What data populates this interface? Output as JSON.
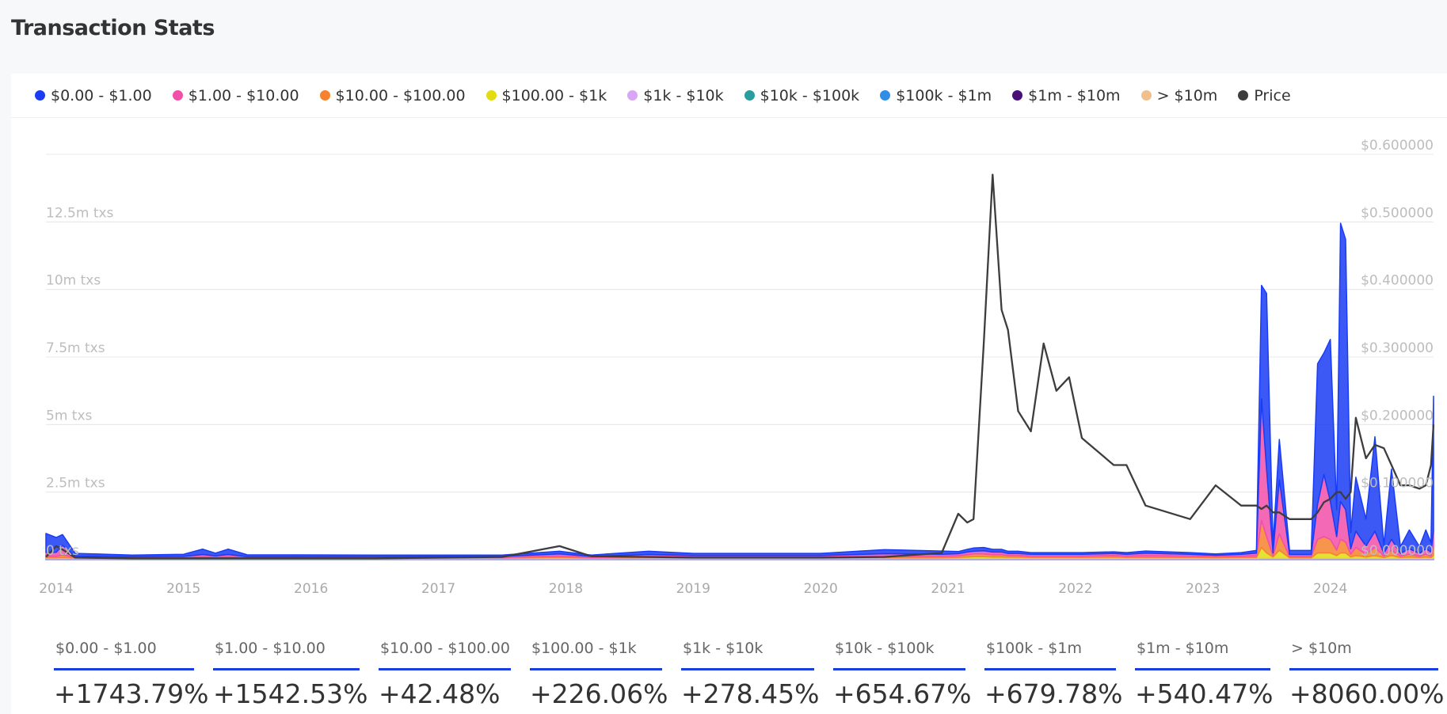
{
  "header": {
    "title": "Transaction Stats"
  },
  "chart_data": {
    "type": "area",
    "x": [
      2013.92,
      2014.0,
      2014.05,
      2014.15,
      2014.6,
      2015.0,
      2015.15,
      2015.25,
      2015.35,
      2015.5,
      2016.5,
      2017.5,
      2017.95,
      2018.2,
      2018.65,
      2019.0,
      2020.0,
      2020.5,
      2020.95,
      2021.08,
      2021.15,
      2021.2,
      2021.28,
      2021.35,
      2021.42,
      2021.47,
      2021.55,
      2021.65,
      2021.75,
      2021.85,
      2021.95,
      2022.05,
      2022.3,
      2022.4,
      2022.55,
      2022.9,
      2023.1,
      2023.3,
      2023.42,
      2023.46,
      2023.5,
      2023.55,
      2023.6,
      2023.68,
      2023.85,
      2023.9,
      2023.95,
      2024.0,
      2024.05,
      2024.08,
      2024.12,
      2024.16,
      2024.2,
      2024.28,
      2024.35,
      2024.42,
      2024.48,
      2024.55,
      2024.62,
      2024.7,
      2024.75,
      2024.79,
      2024.81
    ],
    "series": [
      {
        "name": "$0.00 - $1.00",
        "color": "#1a3cf5",
        "values": [
          0.7,
          0.55,
          0.4,
          0.1,
          0.06,
          0.08,
          0.2,
          0.1,
          0.2,
          0.07,
          0.06,
          0.05,
          0.1,
          0.05,
          0.12,
          0.08,
          0.08,
          0.15,
          0.12,
          0.08,
          0.1,
          0.12,
          0.12,
          0.1,
          0.1,
          0.08,
          0.08,
          0.06,
          0.06,
          0.06,
          0.06,
          0.06,
          0.06,
          0.06,
          0.08,
          0.06,
          0.05,
          0.06,
          0.1,
          4.2,
          6.5,
          0.3,
          1.5,
          0.15,
          0.15,
          5.2,
          4.5,
          6.0,
          1.0,
          10.3,
          10.0,
          0.6,
          2.0,
          1.0,
          3.5,
          0.3,
          2.6,
          0.25,
          0.7,
          0.25,
          0.7,
          0.35,
          5.0
        ]
      },
      {
        "name": "$1.00 - $10.00",
        "color": "#f24fa8",
        "values": [
          0.15,
          0.15,
          0.35,
          0.05,
          0.03,
          0.04,
          0.08,
          0.05,
          0.08,
          0.03,
          0.03,
          0.04,
          0.08,
          0.04,
          0.08,
          0.06,
          0.06,
          0.1,
          0.08,
          0.08,
          0.1,
          0.1,
          0.12,
          0.1,
          0.1,
          0.08,
          0.08,
          0.07,
          0.07,
          0.07,
          0.07,
          0.07,
          0.08,
          0.07,
          0.1,
          0.07,
          0.05,
          0.07,
          0.1,
          4.5,
          2.5,
          0.1,
          2.0,
          0.08,
          0.08,
          1.3,
          2.3,
          1.4,
          0.5,
          1.4,
          1.2,
          0.2,
          0.6,
          0.3,
          0.6,
          0.1,
          0.4,
          0.1,
          0.2,
          0.1,
          0.2,
          0.15,
          0.6
        ]
      },
      {
        "name": "$10.00 - $100.00",
        "color": "#f6822f",
        "values": [
          0.05,
          0.05,
          0.1,
          0.02,
          0.02,
          0.02,
          0.04,
          0.03,
          0.04,
          0.02,
          0.02,
          0.02,
          0.05,
          0.02,
          0.04,
          0.03,
          0.03,
          0.05,
          0.05,
          0.06,
          0.08,
          0.1,
          0.1,
          0.08,
          0.08,
          0.06,
          0.06,
          0.05,
          0.05,
          0.05,
          0.05,
          0.05,
          0.06,
          0.05,
          0.06,
          0.05,
          0.04,
          0.05,
          0.06,
          1.0,
          0.6,
          0.05,
          0.6,
          0.04,
          0.04,
          0.5,
          0.6,
          0.5,
          0.2,
          0.5,
          0.4,
          0.1,
          0.3,
          0.1,
          0.3,
          0.05,
          0.2,
          0.05,
          0.1,
          0.05,
          0.1,
          0.05,
          0.3
        ]
      },
      {
        "name": "$100.00 - $1k",
        "color": "#e2dc12",
        "values": [
          0.02,
          0.02,
          0.03,
          0.01,
          0.01,
          0.01,
          0.02,
          0.01,
          0.02,
          0.01,
          0.01,
          0.01,
          0.03,
          0.01,
          0.02,
          0.01,
          0.01,
          0.02,
          0.02,
          0.03,
          0.05,
          0.06,
          0.06,
          0.05,
          0.05,
          0.04,
          0.04,
          0.03,
          0.03,
          0.03,
          0.03,
          0.03,
          0.04,
          0.03,
          0.03,
          0.03,
          0.02,
          0.03,
          0.03,
          0.4,
          0.2,
          0.05,
          0.3,
          0.02,
          0.02,
          0.2,
          0.2,
          0.2,
          0.1,
          0.2,
          0.2,
          0.05,
          0.1,
          0.05,
          0.1,
          0.03,
          0.1,
          0.03,
          0.05,
          0.03,
          0.05,
          0.03,
          0.1
        ]
      },
      {
        "name": "$1k - $10k",
        "color": "#d9a6f5",
        "values": [
          0.02,
          0.02,
          0.02,
          0.02,
          0.02,
          0.02,
          0.02,
          0.02,
          0.02,
          0.02,
          0.02,
          0.02,
          0.02,
          0.02,
          0.02,
          0.02,
          0.02,
          0.02,
          0.02,
          0.02,
          0.02,
          0.02,
          0.02,
          0.02,
          0.02,
          0.02,
          0.02,
          0.02,
          0.02,
          0.02,
          0.02,
          0.02,
          0.02,
          0.02,
          0.02,
          0.02,
          0.02,
          0.02,
          0.02,
          0.02,
          0.02,
          0.02,
          0.02,
          0.02,
          0.02,
          0.02,
          0.02,
          0.02,
          0.02,
          0.02,
          0.02,
          0.02,
          0.02,
          0.02,
          0.02,
          0.02,
          0.02,
          0.02,
          0.02,
          0.02,
          0.02,
          0.02,
          0.02
        ]
      },
      {
        "name": "$10k - $100k",
        "color": "#2a9d9d",
        "values": [
          0.01,
          0.01,
          0.01,
          0.01,
          0.01,
          0.01,
          0.01,
          0.01,
          0.01,
          0.01,
          0.01,
          0.01,
          0.01,
          0.01,
          0.01,
          0.01,
          0.01,
          0.01,
          0.01,
          0.01,
          0.01,
          0.01,
          0.01,
          0.01,
          0.01,
          0.01,
          0.01,
          0.01,
          0.01,
          0.01,
          0.01,
          0.01,
          0.01,
          0.01,
          0.01,
          0.01,
          0.01,
          0.01,
          0.01,
          0.01,
          0.01,
          0.01,
          0.01,
          0.01,
          0.01,
          0.01,
          0.01,
          0.01,
          0.01,
          0.01,
          0.01,
          0.01,
          0.01,
          0.01,
          0.01,
          0.01,
          0.01,
          0.01,
          0.01,
          0.01,
          0.01,
          0.01,
          0.01
        ]
      },
      {
        "name": "$100k - $1m",
        "color": "#2f8fe8",
        "values": [
          0.01,
          0.01,
          0.01,
          0.01,
          0.01,
          0.01,
          0.01,
          0.01,
          0.01,
          0.01,
          0.01,
          0.01,
          0.01,
          0.01,
          0.01,
          0.01,
          0.01,
          0.01,
          0.01,
          0.01,
          0.01,
          0.01,
          0.01,
          0.01,
          0.01,
          0.01,
          0.01,
          0.01,
          0.01,
          0.01,
          0.01,
          0.01,
          0.01,
          0.01,
          0.01,
          0.01,
          0.01,
          0.01,
          0.01,
          0.01,
          0.01,
          0.01,
          0.01,
          0.01,
          0.01,
          0.01,
          0.01,
          0.01,
          0.01,
          0.01,
          0.01,
          0.01,
          0.01,
          0.01,
          0.01,
          0.01,
          0.01,
          0.01,
          0.01,
          0.01,
          0.01,
          0.01,
          0.01
        ]
      },
      {
        "name": "$1m - $10m",
        "color": "#4a0e78",
        "values": [
          0.005,
          0.005,
          0.005,
          0.005,
          0.005,
          0.005,
          0.005,
          0.005,
          0.005,
          0.005,
          0.005,
          0.005,
          0.005,
          0.005,
          0.005,
          0.005,
          0.005,
          0.005,
          0.005,
          0.005,
          0.005,
          0.005,
          0.005,
          0.005,
          0.005,
          0.005,
          0.005,
          0.005,
          0.005,
          0.005,
          0.005,
          0.005,
          0.005,
          0.005,
          0.005,
          0.005,
          0.005,
          0.005,
          0.005,
          0.005,
          0.005,
          0.005,
          0.005,
          0.005,
          0.005,
          0.005,
          0.005,
          0.005,
          0.005,
          0.005,
          0.005,
          0.005,
          0.005,
          0.005,
          0.005,
          0.005,
          0.005,
          0.005,
          0.005,
          0.005,
          0.005,
          0.005,
          0.005
        ]
      },
      {
        "name": "> $10m",
        "color": "#f0bf8e",
        "values": [
          0.005,
          0.005,
          0.005,
          0.005,
          0.005,
          0.005,
          0.005,
          0.005,
          0.005,
          0.005,
          0.005,
          0.005,
          0.005,
          0.005,
          0.005,
          0.005,
          0.005,
          0.005,
          0.005,
          0.005,
          0.005,
          0.005,
          0.005,
          0.005,
          0.005,
          0.005,
          0.005,
          0.005,
          0.005,
          0.005,
          0.005,
          0.005,
          0.005,
          0.005,
          0.005,
          0.005,
          0.005,
          0.005,
          0.005,
          0.005,
          0.005,
          0.005,
          0.005,
          0.005,
          0.005,
          0.005,
          0.005,
          0.005,
          0.005,
          0.005,
          0.005,
          0.005,
          0.005,
          0.005,
          0.005,
          0.005,
          0.005,
          0.005,
          0.005,
          0.005,
          0.005,
          0.005,
          0.005
        ]
      },
      {
        "name": "Price",
        "color": "#3d3d3d",
        "type": "line",
        "axis": "y2",
        "values": [
          0.004,
          0.02,
          0.015,
          0.003,
          0.002,
          0.002,
          0.002,
          0.002,
          0.002,
          0.002,
          0.002,
          0.004,
          0.02,
          0.005,
          0.004,
          0.003,
          0.003,
          0.004,
          0.01,
          0.068,
          0.055,
          0.06,
          0.32,
          0.57,
          0.37,
          0.34,
          0.22,
          0.19,
          0.32,
          0.25,
          0.27,
          0.18,
          0.14,
          0.14,
          0.08,
          0.06,
          0.11,
          0.08,
          0.08,
          0.075,
          0.08,
          0.07,
          0.07,
          0.06,
          0.06,
          0.07,
          0.085,
          0.09,
          0.1,
          0.1,
          0.09,
          0.1,
          0.21,
          0.15,
          0.17,
          0.165,
          0.14,
          0.11,
          0.11,
          0.105,
          0.11,
          0.14,
          0.2
        ]
      }
    ],
    "xlim": [
      2013.92,
      2024.81
    ],
    "xticks": [
      2014,
      2015,
      2016,
      2017,
      2018,
      2019,
      2020,
      2021,
      2022,
      2023,
      2024
    ],
    "ylim": [
      0,
      15
    ],
    "yticks": [
      {
        "value": 0,
        "label": "0 txs"
      },
      {
        "value": 2.5,
        "label": "2.5m txs"
      },
      {
        "value": 5,
        "label": "5m txs"
      },
      {
        "value": 7.5,
        "label": "7.5m txs"
      },
      {
        "value": 10,
        "label": "10m txs"
      },
      {
        "value": 12.5,
        "label": "12.5m txs"
      }
    ],
    "y2lim": [
      0,
      0.6
    ],
    "y2ticks": [
      {
        "value": 0,
        "label": "$0.000000"
      },
      {
        "value": 0.1,
        "label": "$0.100000"
      },
      {
        "value": 0.2,
        "label": "$0.200000"
      },
      {
        "value": 0.3,
        "label": "$0.300000"
      },
      {
        "value": 0.4,
        "label": "$0.400000"
      },
      {
        "value": 0.5,
        "label": "$0.500000"
      },
      {
        "value": 0.6,
        "label": "$0.600000"
      }
    ],
    "grid": true,
    "legend": "top"
  },
  "stats": [
    {
      "label": "$0.00 - $1.00",
      "value": "+1743.79%"
    },
    {
      "label": "$1.00 - $10.00",
      "value": "+1542.53%"
    },
    {
      "label": "$10.00 - $100.00",
      "value": "+42.48%"
    },
    {
      "label": "$100.00 - $1k",
      "value": "+226.06%"
    },
    {
      "label": "$1k - $10k",
      "value": "+278.45%"
    },
    {
      "label": "$10k - $100k",
      "value": "+654.67%"
    },
    {
      "label": "$100k - $1m",
      "value": "+679.78%"
    },
    {
      "label": "$1m - $10m",
      "value": "+540.47%"
    },
    {
      "label": "> $10m",
      "value": "+8060.00%"
    }
  ]
}
